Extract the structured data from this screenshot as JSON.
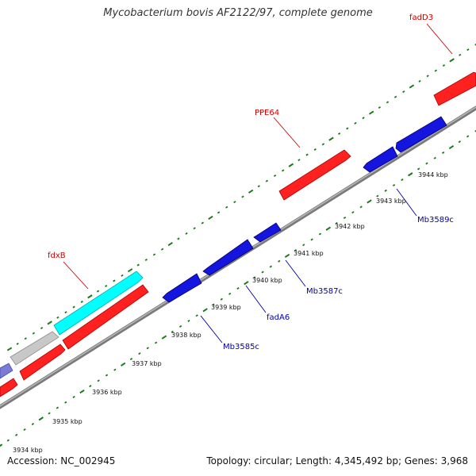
{
  "title": "Mycobacterium bovis AF2122/97, complete genome",
  "accession": "Accession: NC_002945",
  "topology": "Topology: circular; Length: 4,345,492 bp; Genes: 3,968",
  "ticks": [
    "3934 kbp",
    "3935 kbp",
    "3936 kbp",
    "3937 kbp",
    "3938 kbp",
    "3939 kbp",
    "3940 kbp",
    "3941 kbp",
    "3942 kbp",
    "3943 kbp",
    "3944 kbp"
  ],
  "gene_labels": [
    {
      "id": "fadD3",
      "text": "fadD3",
      "color": "#cc0000"
    },
    {
      "id": "PPE64",
      "text": "PPE64",
      "color": "#cc0000"
    },
    {
      "id": "fdxB",
      "text": "fdxB",
      "color": "#cc0000"
    },
    {
      "id": "Mb3589c",
      "text": "Mb3589c",
      "color": "#0000aa"
    },
    {
      "id": "Mb3587c",
      "text": "Mb3587c",
      "color": "#0000aa"
    },
    {
      "id": "fadA6",
      "text": "fadA6",
      "color": "#0000aa"
    },
    {
      "id": "Mb3585c",
      "text": "Mb3585c",
      "color": "#0000aa"
    }
  ],
  "colors": {
    "forward_gene": "#ff2020",
    "reverse_gene": "#1515e0",
    "cyan_gene": "#00ffff",
    "gray_gene": "#c0c0c0",
    "purple_gene": "#7b7bd8",
    "backbone": "#8a8a8a",
    "dots": "#1a7a1a"
  }
}
